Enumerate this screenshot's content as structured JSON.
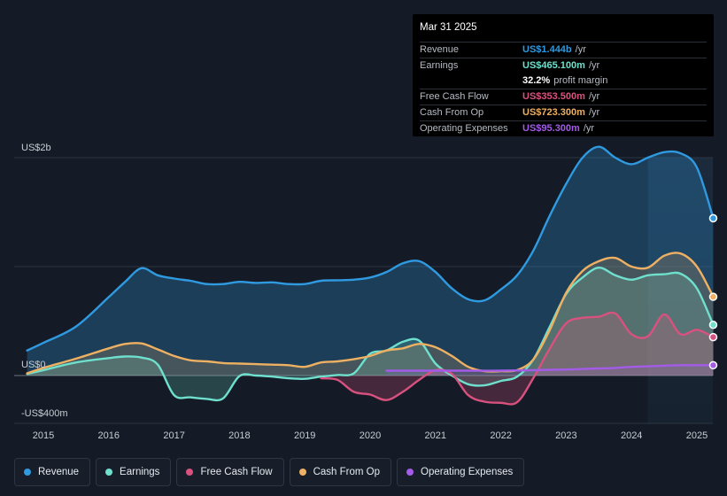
{
  "tooltip": {
    "date": "Mar 31 2025",
    "rows": [
      {
        "label": "Revenue",
        "value": "US$1.444b",
        "unit": "/yr",
        "color": "#2f9ae0"
      },
      {
        "label": "Earnings",
        "value": "US$465.100m",
        "unit": "/yr",
        "color": "#6ee0cd"
      },
      {
        "label": "",
        "value": "32.2%",
        "unit": "profit margin",
        "color": "#ffffff"
      },
      {
        "label": "Free Cash Flow",
        "value": "US$353.500m",
        "unit": "/yr",
        "color": "#d8517f"
      },
      {
        "label": "Cash From Op",
        "value": "US$723.300m",
        "unit": "/yr",
        "color": "#eeb062"
      },
      {
        "label": "Operating Expenses",
        "value": "US$95.300m",
        "unit": "/yr",
        "color": "#a35be8"
      }
    ]
  },
  "legend": [
    {
      "label": "Revenue",
      "color": "#2f9ae0"
    },
    {
      "label": "Earnings",
      "color": "#6ee0cd"
    },
    {
      "label": "Free Cash Flow",
      "color": "#d8517f"
    },
    {
      "label": "Cash From Op",
      "color": "#eeb062"
    },
    {
      "label": "Operating Expenses",
      "color": "#a35be8"
    }
  ],
  "chart_data": {
    "type": "area",
    "title": "",
    "xlabel": "",
    "ylabel": "",
    "unit": "US$m",
    "ylim": [
      -400,
      2000
    ],
    "xlim": [
      2014.75,
      2025.25
    ],
    "y_tick_labels": [
      {
        "value": 2000,
        "label": "US$2b"
      },
      {
        "value": 0,
        "label": "US$0"
      },
      {
        "value": -400,
        "label": "-US$400m"
      }
    ],
    "x_ticks": [
      "2015",
      "2016",
      "2017",
      "2018",
      "2019",
      "2020",
      "2021",
      "2022",
      "2023",
      "2024",
      "2025"
    ],
    "highlight_from": 2024.25,
    "series": [
      {
        "name": "Revenue",
        "color": "#2f9ae0",
        "points": [
          [
            2014.75,
            230
          ],
          [
            2015,
            300
          ],
          [
            2015.5,
            450
          ],
          [
            2016,
            720
          ],
          [
            2016.25,
            860
          ],
          [
            2016.5,
            985
          ],
          [
            2016.75,
            920
          ],
          [
            2017,
            890
          ],
          [
            2017.25,
            870
          ],
          [
            2017.5,
            840
          ],
          [
            2017.75,
            840
          ],
          [
            2018,
            860
          ],
          [
            2018.25,
            850
          ],
          [
            2018.5,
            855
          ],
          [
            2018.75,
            840
          ],
          [
            2019,
            840
          ],
          [
            2019.25,
            870
          ],
          [
            2019.5,
            875
          ],
          [
            2019.75,
            880
          ],
          [
            2020,
            900
          ],
          [
            2020.25,
            950
          ],
          [
            2020.5,
            1030
          ],
          [
            2020.75,
            1050
          ],
          [
            2021,
            950
          ],
          [
            2021.25,
            800
          ],
          [
            2021.5,
            700
          ],
          [
            2021.75,
            690
          ],
          [
            2022,
            790
          ],
          [
            2022.25,
            920
          ],
          [
            2022.5,
            1150
          ],
          [
            2022.75,
            1470
          ],
          [
            2023,
            1760
          ],
          [
            2023.25,
            2000
          ],
          [
            2023.5,
            2100
          ],
          [
            2023.75,
            2000
          ],
          [
            2024,
            1940
          ],
          [
            2024.25,
            2000
          ],
          [
            2024.5,
            2050
          ],
          [
            2024.75,
            2040
          ],
          [
            2025,
            1910
          ],
          [
            2025.25,
            1444
          ]
        ]
      },
      {
        "name": "Earnings",
        "color": "#6ee0cd",
        "points": [
          [
            2014.75,
            15
          ],
          [
            2015,
            50
          ],
          [
            2015.5,
            120
          ],
          [
            2016,
            160
          ],
          [
            2016.25,
            175
          ],
          [
            2016.5,
            165
          ],
          [
            2016.75,
            100
          ],
          [
            2017,
            -180
          ],
          [
            2017.25,
            -200
          ],
          [
            2017.5,
            -215
          ],
          [
            2017.75,
            -210
          ],
          [
            2018,
            -5
          ],
          [
            2018.25,
            0
          ],
          [
            2018.5,
            -10
          ],
          [
            2018.75,
            -25
          ],
          [
            2019,
            -30
          ],
          [
            2019.25,
            -10
          ],
          [
            2019.5,
            5
          ],
          [
            2019.75,
            20
          ],
          [
            2020,
            200
          ],
          [
            2020.25,
            230
          ],
          [
            2020.5,
            310
          ],
          [
            2020.75,
            320
          ],
          [
            2021,
            110
          ],
          [
            2021.25,
            0
          ],
          [
            2021.5,
            -80
          ],
          [
            2021.75,
            -90
          ],
          [
            2022,
            -50
          ],
          [
            2022.25,
            -10
          ],
          [
            2022.5,
            150
          ],
          [
            2022.75,
            450
          ],
          [
            2023,
            750
          ],
          [
            2023.25,
            900
          ],
          [
            2023.5,
            990
          ],
          [
            2023.75,
            920
          ],
          [
            2024,
            880
          ],
          [
            2024.25,
            920
          ],
          [
            2024.5,
            930
          ],
          [
            2024.75,
            935
          ],
          [
            2025,
            800
          ],
          [
            2025.25,
            465
          ]
        ]
      },
      {
        "name": "Free Cash Flow",
        "color": "#d8517f",
        "points": [
          [
            2019.25,
            -25
          ],
          [
            2019.5,
            -40
          ],
          [
            2019.75,
            -150
          ],
          [
            2020,
            -175
          ],
          [
            2020.25,
            -225
          ],
          [
            2020.5,
            -150
          ],
          [
            2020.75,
            -40
          ],
          [
            2021,
            50
          ],
          [
            2021.25,
            15
          ],
          [
            2021.5,
            -180
          ],
          [
            2021.75,
            -240
          ],
          [
            2022,
            -250
          ],
          [
            2022.25,
            -245
          ],
          [
            2022.5,
            -20
          ],
          [
            2022.75,
            250
          ],
          [
            2023,
            480
          ],
          [
            2023.25,
            530
          ],
          [
            2023.5,
            540
          ],
          [
            2023.75,
            570
          ],
          [
            2024,
            380
          ],
          [
            2024.25,
            360
          ],
          [
            2024.5,
            560
          ],
          [
            2024.75,
            380
          ],
          [
            2025,
            420
          ],
          [
            2025.25,
            353
          ]
        ]
      },
      {
        "name": "Cash From Op",
        "color": "#eeb062",
        "points": [
          [
            2014.75,
            20
          ],
          [
            2015,
            70
          ],
          [
            2015.5,
            155
          ],
          [
            2016,
            250
          ],
          [
            2016.25,
            290
          ],
          [
            2016.5,
            295
          ],
          [
            2016.75,
            240
          ],
          [
            2017,
            180
          ],
          [
            2017.25,
            140
          ],
          [
            2017.5,
            130
          ],
          [
            2017.75,
            115
          ],
          [
            2018,
            110
          ],
          [
            2018.25,
            105
          ],
          [
            2018.5,
            100
          ],
          [
            2018.75,
            95
          ],
          [
            2019,
            80
          ],
          [
            2019.25,
            120
          ],
          [
            2019.5,
            130
          ],
          [
            2019.75,
            150
          ],
          [
            2020,
            180
          ],
          [
            2020.25,
            230
          ],
          [
            2020.5,
            250
          ],
          [
            2020.75,
            290
          ],
          [
            2021,
            260
          ],
          [
            2021.25,
            180
          ],
          [
            2021.5,
            80
          ],
          [
            2021.75,
            40
          ],
          [
            2022,
            40
          ],
          [
            2022.25,
            50
          ],
          [
            2022.5,
            150
          ],
          [
            2022.75,
            420
          ],
          [
            2023,
            760
          ],
          [
            2023.25,
            960
          ],
          [
            2023.5,
            1050
          ],
          [
            2023.75,
            1080
          ],
          [
            2024,
            1000
          ],
          [
            2024.25,
            990
          ],
          [
            2024.5,
            1100
          ],
          [
            2024.75,
            1120
          ],
          [
            2025,
            1000
          ],
          [
            2025.25,
            723
          ]
        ]
      },
      {
        "name": "Operating Expenses",
        "color": "#a35be8",
        "points": [
          [
            2020.25,
            45
          ],
          [
            2020.5,
            45
          ],
          [
            2020.75,
            45
          ],
          [
            2021,
            45
          ],
          [
            2021.5,
            45
          ],
          [
            2022,
            45
          ],
          [
            2022.5,
            50
          ],
          [
            2023,
            55
          ],
          [
            2023.25,
            60
          ],
          [
            2023.5,
            65
          ],
          [
            2023.75,
            70
          ],
          [
            2024,
            80
          ],
          [
            2024.5,
            90
          ],
          [
            2024.75,
            95
          ],
          [
            2025,
            95
          ],
          [
            2025.25,
            95
          ]
        ]
      }
    ]
  }
}
